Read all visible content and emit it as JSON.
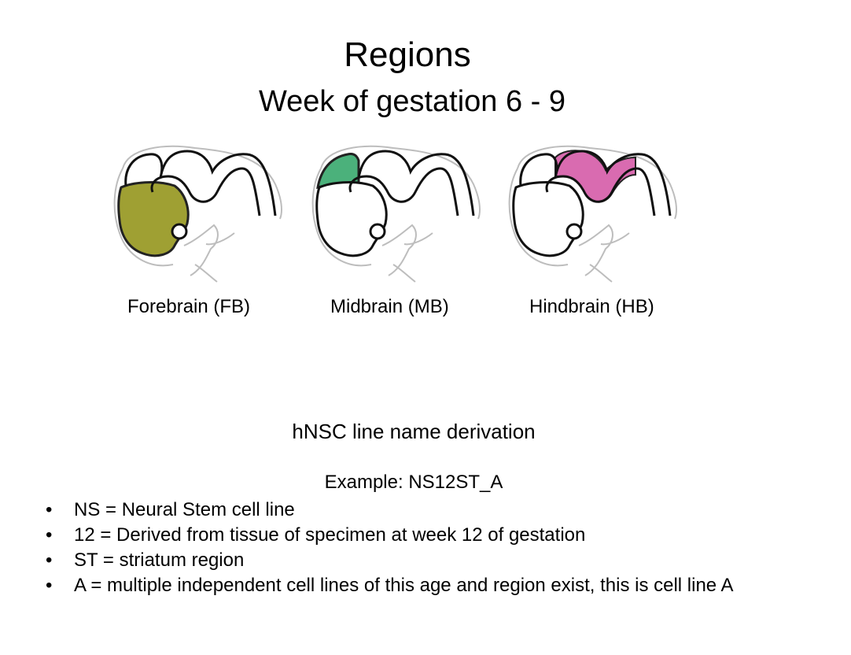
{
  "title": "Regions",
  "subtitle": "Week of gestation 6 - 9",
  "regions": [
    {
      "label": "Forebrain (FB)",
      "highlight": "forebrain",
      "color": "#9fa033"
    },
    {
      "label": "Midbrain (MB)",
      "highlight": "midbrain",
      "color": "#4bb17b"
    },
    {
      "label": "Hindbrain (HB)",
      "highlight": "hindbrain",
      "color": "#d96bb0"
    }
  ],
  "derivation": {
    "heading": "hNSC line name derivation",
    "example": "Example: NS12ST_A",
    "bullet_symbol": "•",
    "items": [
      "NS = Neural Stem cell line",
      "12 = Derived from tissue of specimen at week 12 of gestation",
      "ST = striatum region",
      "A = multiple independent cell lines of this age and region exist, this is cell line A"
    ]
  }
}
